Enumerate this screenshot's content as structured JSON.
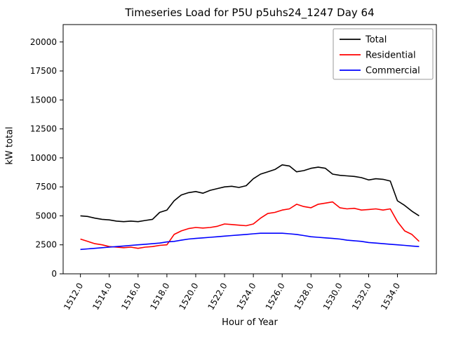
{
  "chart_data": {
    "type": "line",
    "title": "Timeseries Load for P5U p5uhs24_1247  Day 64",
    "xlabel": "Hour of Year",
    "ylabel": "kW total",
    "xlim": [
      1510.8,
      1536.7
    ],
    "ylim": [
      0,
      21500
    ],
    "grid": false,
    "legend_position": "upper right",
    "legend_border_color": "#999999",
    "xticks": [
      1512,
      1514,
      1516,
      1518,
      1520,
      1522,
      1524,
      1526,
      1528,
      1530,
      1532,
      1534
    ],
    "xtick_labels": [
      "1512.0",
      "1514.0",
      "1516.0",
      "1518.0",
      "1520.0",
      "1522.0",
      "1524.0",
      "1526.0",
      "1528.0",
      "1530.0",
      "1532.0",
      "1534.0"
    ],
    "yticks": [
      0,
      2500,
      5000,
      7500,
      10000,
      12500,
      15000,
      17500,
      20000
    ],
    "ytick_labels": [
      "0",
      "2500",
      "5000",
      "7500",
      "10000",
      "12500",
      "15000",
      "17500",
      "20000"
    ],
    "x": [
      1512.0,
      1512.5,
      1513.0,
      1513.5,
      1514.0,
      1514.5,
      1515.0,
      1515.5,
      1516.0,
      1516.5,
      1517.0,
      1517.5,
      1518.0,
      1518.5,
      1519.0,
      1519.5,
      1520.0,
      1520.5,
      1521.0,
      1521.5,
      1522.0,
      1522.5,
      1523.0,
      1523.5,
      1524.0,
      1524.5,
      1525.0,
      1525.5,
      1526.0,
      1526.5,
      1527.0,
      1527.5,
      1528.0,
      1528.5,
      1529.0,
      1529.5,
      1530.0,
      1530.5,
      1531.0,
      1531.5,
      1532.0,
      1532.5,
      1533.0,
      1533.5,
      1534.0,
      1534.5,
      1535.0,
      1535.5
    ],
    "series": [
      {
        "name": "Total",
        "color": "#000000",
        "values": [
          5000,
          4950,
          4800,
          4700,
          4650,
          4550,
          4500,
          4550,
          4500,
          4600,
          4700,
          5300,
          5500,
          6300,
          6800,
          7000,
          7100,
          6950,
          7200,
          7350,
          7500,
          7550,
          7450,
          7600,
          8200,
          8600,
          8800,
          9000,
          9400,
          9300,
          8800,
          8900,
          9100,
          9200,
          9100,
          8600,
          8500,
          8450,
          8400,
          8300,
          8100,
          8200,
          8150,
          8000,
          6300,
          5900,
          5400,
          5000
        ]
      },
      {
        "name": "Residential",
        "color": "#ff0000",
        "values": [
          3000,
          2800,
          2600,
          2500,
          2350,
          2300,
          2250,
          2300,
          2200,
          2300,
          2350,
          2450,
          2500,
          3400,
          3700,
          3900,
          4000,
          3950,
          4000,
          4100,
          4300,
          4250,
          4200,
          4150,
          4300,
          4800,
          5200,
          5300,
          5500,
          5600,
          6000,
          5800,
          5700,
          6000,
          6100,
          6200,
          5700,
          5600,
          5650,
          5500,
          5550,
          5600,
          5500,
          5600,
          4500,
          3700,
          3400,
          2800
        ]
      },
      {
        "name": "Commercial",
        "color": "#0000ff",
        "values": [
          2100,
          2150,
          2200,
          2250,
          2300,
          2350,
          2400,
          2450,
          2500,
          2550,
          2600,
          2650,
          2750,
          2800,
          2900,
          3000,
          3050,
          3100,
          3150,
          3200,
          3250,
          3300,
          3350,
          3400,
          3450,
          3500,
          3500,
          3500,
          3500,
          3450,
          3400,
          3300,
          3200,
          3150,
          3100,
          3050,
          3000,
          2900,
          2850,
          2800,
          2700,
          2650,
          2600,
          2550,
          2500,
          2450,
          2400,
          2350
        ]
      }
    ]
  }
}
